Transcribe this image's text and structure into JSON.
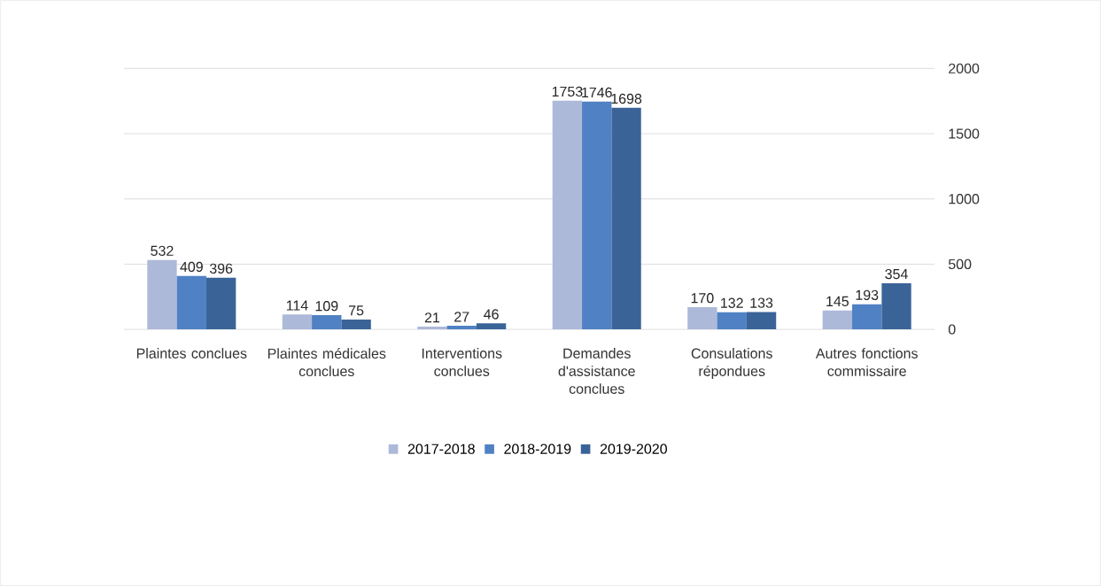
{
  "chart_data": {
    "type": "bar",
    "categories": [
      "Plaintes conclues",
      "Plaintes médicales conclues",
      "Interventions conclues",
      "Demandes d'assistance conclues",
      "Consulations répondues",
      "Autres fonctions commissaire"
    ],
    "series": [
      {
        "name": "2017-2018",
        "color": "#adb9d9",
        "values": [
          532,
          114,
          21,
          1753,
          170,
          145
        ]
      },
      {
        "name": "2018-2019",
        "color": "#4f81c4",
        "values": [
          409,
          109,
          27,
          1746,
          132,
          193
        ]
      },
      {
        "name": "2019-2020",
        "color": "#3a6498",
        "values": [
          396,
          75,
          46,
          1698,
          133,
          354
        ]
      }
    ],
    "ylim": [
      0,
      2000
    ],
    "yticks": [
      0,
      500,
      1000,
      1500,
      2000
    ],
    "grid": "y",
    "legend": "bottom",
    "data_labels": true
  }
}
